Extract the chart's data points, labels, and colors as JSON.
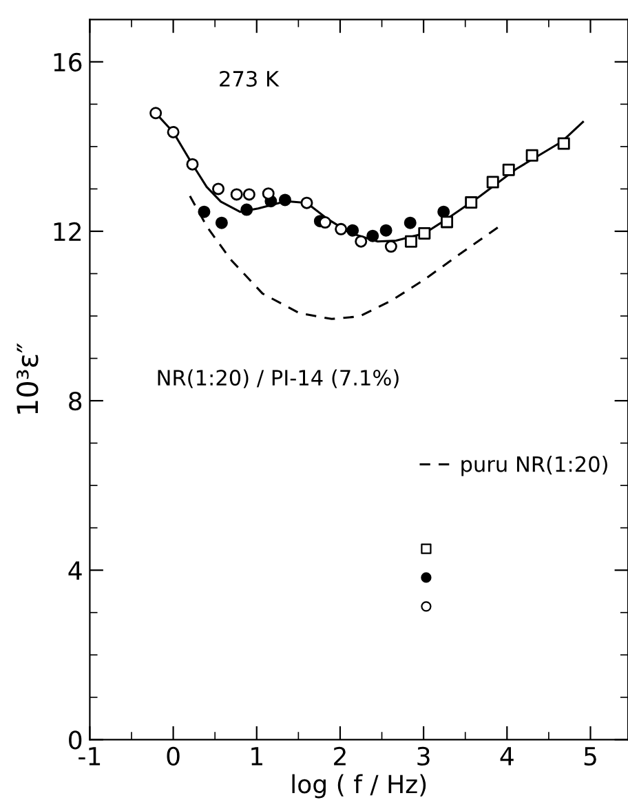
{
  "chart_data": {
    "type": "scatter",
    "xlabel": "log ( f / Hz)",
    "ylabel": "10³ε″",
    "xlim": [
      -1,
      5.45
    ],
    "ylim": [
      0,
      17
    ],
    "xticks": [
      {
        "value": -1,
        "label": "-1"
      },
      0,
      1,
      2,
      3,
      4,
      5,
      {
        "value": -0.5,
        "label": null
      },
      {
        "value": 0.5,
        "label": null
      },
      {
        "value": 1.5,
        "label": null
      },
      {
        "value": 2.5,
        "label": null
      },
      {
        "value": 3.5,
        "label": null
      },
      {
        "value": 4.5,
        "label": null
      }
    ],
    "yticks": [
      0,
      4,
      8,
      12,
      16,
      {
        "value": 1,
        "label": null
      },
      {
        "value": 2,
        "label": null
      },
      {
        "value": 3,
        "label": null
      },
      {
        "value": 5,
        "label": null
      },
      {
        "value": 6,
        "label": null
      },
      {
        "value": 7,
        "label": null
      },
      {
        "value": 9,
        "label": null
      },
      {
        "value": 10,
        "label": null
      },
      {
        "value": 11,
        "label": null
      },
      {
        "value": 13,
        "label": null
      },
      {
        "value": 14,
        "label": null
      },
      {
        "value": 15,
        "label": null
      }
    ],
    "tick_labels": "xy",
    "grid": false,
    "legend": "right",
    "annotations": [
      "273 K",
      "NR(1:20) / PI-14 (7.1%)"
    ],
    "series": [
      {
        "type": "line",
        "line_style": "solid",
        "marker": "none",
        "color": "#000000",
        "x": [
          -0.21,
          0.0,
          0.23,
          0.4,
          0.57,
          0.8,
          1.02,
          1.35,
          1.6,
          1.85,
          2.12,
          2.45,
          2.67,
          3.01,
          3.28,
          3.67,
          4.11,
          4.66,
          4.91
        ],
        "values": [
          14.79,
          14.34,
          13.58,
          13.05,
          12.7,
          12.46,
          12.54,
          12.71,
          12.67,
          12.29,
          11.96,
          11.76,
          11.78,
          11.95,
          12.29,
          12.82,
          13.47,
          14.12,
          14.58
        ]
      },
      {
        "type": "line",
        "name": "puru NR(1:20)",
        "line_style": "dashed",
        "marker": "none",
        "color": "#000000",
        "x": [
          0.2,
          0.41,
          0.69,
          1.07,
          1.51,
          1.9,
          2.23,
          2.62,
          3.01,
          3.39,
          3.94
        ],
        "values": [
          12.83,
          12.09,
          11.33,
          10.53,
          10.07,
          9.93,
          9.99,
          10.37,
          10.86,
          11.4,
          12.16
        ]
      },
      {
        "marker": "circle",
        "color": "#ffffff",
        "x": [
          -0.21,
          0.0,
          0.23,
          0.54,
          0.76,
          0.91,
          1.14,
          1.6,
          1.82,
          2.01,
          2.25,
          2.61
        ],
        "values": [
          14.79,
          14.34,
          13.58,
          13.0,
          12.87,
          12.87,
          12.89,
          12.67,
          12.21,
          12.05,
          11.76,
          11.64
        ]
      },
      {
        "marker": "circle",
        "color": "#000000",
        "x": [
          0.37,
          0.58,
          0.88,
          1.17,
          1.34,
          1.76,
          2.15,
          2.39,
          2.55,
          2.84,
          3.24
        ],
        "values": [
          12.46,
          12.2,
          12.51,
          12.71,
          12.74,
          12.24,
          12.02,
          11.89,
          12.02,
          12.2,
          12.46
        ]
      },
      {
        "marker": "square",
        "color": "#ffffff",
        "x": [
          2.85,
          3.01,
          3.28,
          3.57,
          3.83,
          4.02,
          4.3,
          4.68
        ],
        "values": [
          11.76,
          11.95,
          12.22,
          12.68,
          13.16,
          13.45,
          13.79,
          14.07
        ]
      }
    ]
  }
}
